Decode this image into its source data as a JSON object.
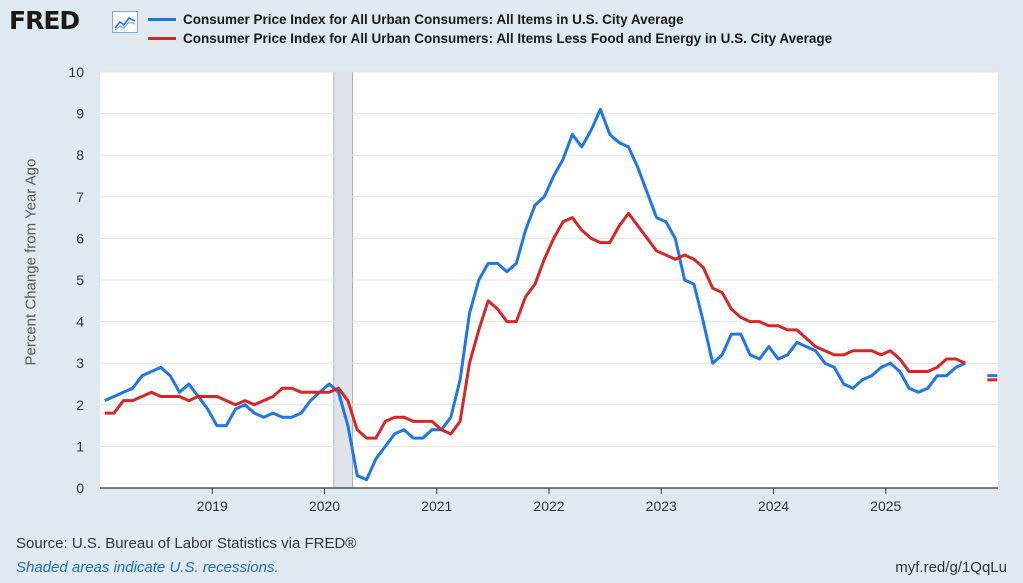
{
  "header": {
    "logo_text": "FRED",
    "logo_icon": "line-chart-icon"
  },
  "legend": [
    {
      "label": "Consumer Price Index for All Urban Consumers: All Items in U.S. City Average",
      "color": "#1f77e4"
    },
    {
      "label": "Consumer Price Index for All Urban Consumers: All Items Less Food and Energy in U.S. City Average",
      "color": "#d62728"
    }
  ],
  "footer": {
    "source": "Source: U.S. Bureau of Labor Statistics via FRED®",
    "note": "Shaded areas indicate U.S. recessions.",
    "link": "myf.red/g/1QqLu"
  },
  "chart_data": {
    "type": "line",
    "ylabel": "Percent Change from Year Ago",
    "ylim": [
      0,
      10
    ],
    "yticks": [
      0,
      1,
      2,
      3,
      4,
      5,
      6,
      7,
      8,
      9,
      10
    ],
    "xlim": [
      "2018-01",
      "2025-12"
    ],
    "xticks": [
      "2019",
      "2020",
      "2021",
      "2022",
      "2023",
      "2024",
      "2025"
    ],
    "grid": "horizontal",
    "recession_shading": {
      "start": "2020-02",
      "end": "2020-04"
    },
    "x": [
      "2018-01",
      "2018-02",
      "2018-03",
      "2018-04",
      "2018-05",
      "2018-06",
      "2018-07",
      "2018-08",
      "2018-09",
      "2018-10",
      "2018-11",
      "2018-12",
      "2019-01",
      "2019-02",
      "2019-03",
      "2019-04",
      "2019-05",
      "2019-06",
      "2019-07",
      "2019-08",
      "2019-09",
      "2019-10",
      "2019-11",
      "2019-12",
      "2020-01",
      "2020-02",
      "2020-03",
      "2020-04",
      "2020-05",
      "2020-06",
      "2020-07",
      "2020-08",
      "2020-09",
      "2020-10",
      "2020-11",
      "2020-12",
      "2021-01",
      "2021-02",
      "2021-03",
      "2021-04",
      "2021-05",
      "2021-06",
      "2021-07",
      "2021-08",
      "2021-09",
      "2021-10",
      "2021-11",
      "2021-12",
      "2022-01",
      "2022-02",
      "2022-03",
      "2022-04",
      "2022-05",
      "2022-06",
      "2022-07",
      "2022-08",
      "2022-09",
      "2022-10",
      "2022-11",
      "2022-12",
      "2023-01",
      "2023-02",
      "2023-03",
      "2023-04",
      "2023-05",
      "2023-06",
      "2023-07",
      "2023-08",
      "2023-09",
      "2023-10",
      "2023-11",
      "2023-12",
      "2024-01",
      "2024-02",
      "2024-03",
      "2024-04",
      "2024-05",
      "2024-06",
      "2024-07",
      "2024-08",
      "2024-09",
      "2024-10",
      "2024-11",
      "2024-12",
      "2025-01",
      "2025-02",
      "2025-03",
      "2025-04",
      "2025-05",
      "2025-06",
      "2025-07",
      "2025-08",
      "2025-09",
      "2025-10",
      "2025-11",
      "2025-12"
    ],
    "series": [
      {
        "name": "Consumer Price Index for All Urban Consumers: All Items in U.S. City Average",
        "color": "#1f77e4",
        "values": [
          2.1,
          2.2,
          2.3,
          2.4,
          2.7,
          2.8,
          2.9,
          2.7,
          2.3,
          2.5,
          2.2,
          1.9,
          1.5,
          1.5,
          1.9,
          2.0,
          1.8,
          1.7,
          1.8,
          1.7,
          1.7,
          1.8,
          2.1,
          2.3,
          2.5,
          2.3,
          1.5,
          0.3,
          0.2,
          0.7,
          1.0,
          1.3,
          1.4,
          1.2,
          1.2,
          1.4,
          1.4,
          1.7,
          2.6,
          4.2,
          5.0,
          5.4,
          5.4,
          5.2,
          5.4,
          6.2,
          6.8,
          7.0,
          7.5,
          7.9,
          8.5,
          8.2,
          8.6,
          9.1,
          8.5,
          8.3,
          8.2,
          7.7,
          7.1,
          6.5,
          6.4,
          6.0,
          5.0,
          4.9,
          4.0,
          3.0,
          3.2,
          3.7,
          3.7,
          3.2,
          3.1,
          3.4,
          3.1,
          3.2,
          3.5,
          3.4,
          3.3,
          3.0,
          2.9,
          2.5,
          2.4,
          2.6,
          2.7,
          2.9,
          3.0,
          2.8,
          2.4,
          2.3,
          2.4,
          2.7,
          2.7,
          2.9,
          3.0,
          null,
          null,
          2.7
        ]
      },
      {
        "name": "Consumer Price Index for All Urban Consumers: All Items Less Food and Energy in U.S. City Average",
        "color": "#d62728",
        "values": [
          1.8,
          1.8,
          2.1,
          2.1,
          2.2,
          2.3,
          2.2,
          2.2,
          2.2,
          2.1,
          2.2,
          2.2,
          2.2,
          2.1,
          2.0,
          2.1,
          2.0,
          2.1,
          2.2,
          2.4,
          2.4,
          2.3,
          2.3,
          2.3,
          2.3,
          2.4,
          2.1,
          1.4,
          1.2,
          1.2,
          1.6,
          1.7,
          1.7,
          1.6,
          1.6,
          1.6,
          1.4,
          1.3,
          1.6,
          3.0,
          3.8,
          4.5,
          4.3,
          4.0,
          4.0,
          4.6,
          4.9,
          5.5,
          6.0,
          6.4,
          6.5,
          6.2,
          6.0,
          5.9,
          5.9,
          6.3,
          6.6,
          6.3,
          6.0,
          5.7,
          5.6,
          5.5,
          5.6,
          5.5,
          5.3,
          4.8,
          4.7,
          4.3,
          4.1,
          4.0,
          4.0,
          3.9,
          3.9,
          3.8,
          3.8,
          3.6,
          3.4,
          3.3,
          3.2,
          3.2,
          3.3,
          3.3,
          3.3,
          3.2,
          3.3,
          3.1,
          2.8,
          2.8,
          2.8,
          2.9,
          3.1,
          3.1,
          3.0,
          null,
          null,
          2.6
        ]
      }
    ]
  }
}
